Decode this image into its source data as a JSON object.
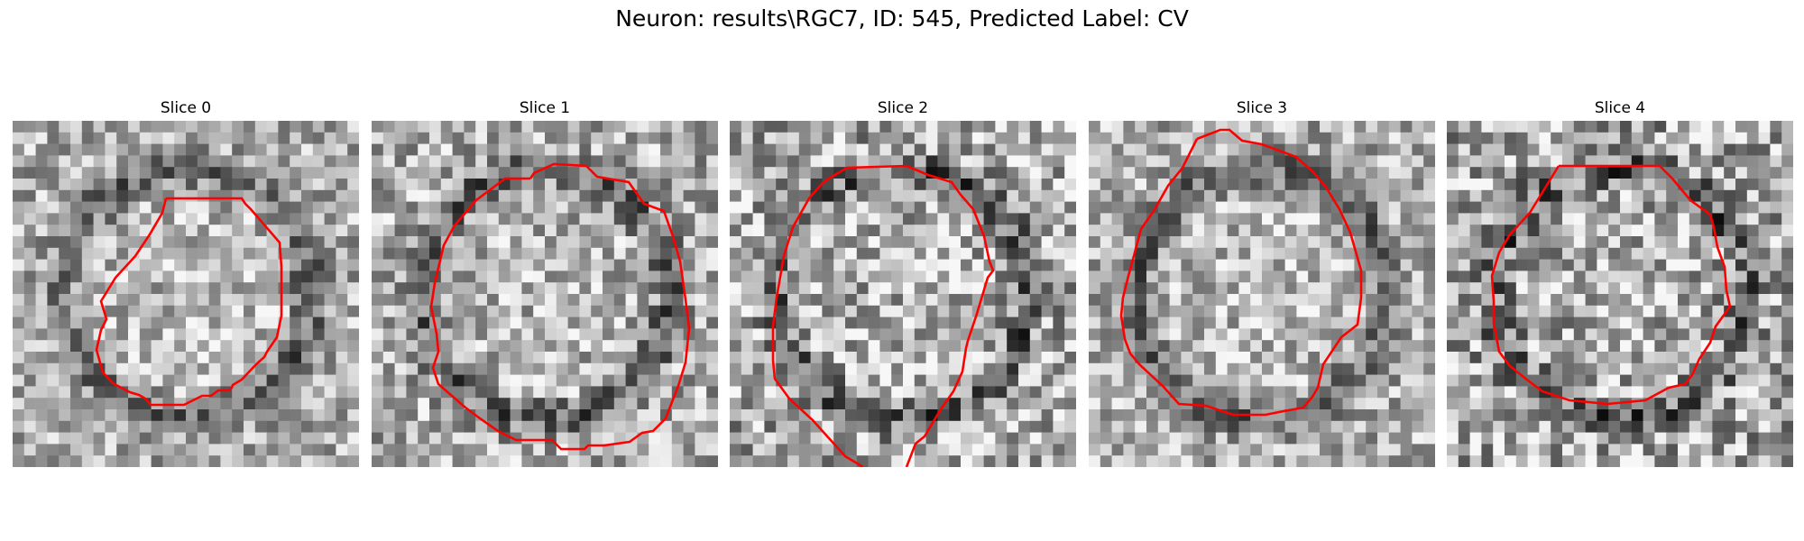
{
  "figure": {
    "title": "Neuron: results\\RGC7, ID: 545, Predicted Label: CV",
    "panels": [
      {
        "label": "Slice 0",
        "seed": 11,
        "contrast": 0.55
      },
      {
        "label": "Slice 1",
        "seed": 23,
        "contrast": 0.6
      },
      {
        "label": "Slice 2",
        "seed": 37,
        "contrast": 0.7
      },
      {
        "label": "Slice 3",
        "seed": 41,
        "contrast": 0.55
      },
      {
        "label": "Slice 4",
        "seed": 59,
        "contrast": 0.75
      }
    ],
    "contour_color": "#ff0000"
  }
}
